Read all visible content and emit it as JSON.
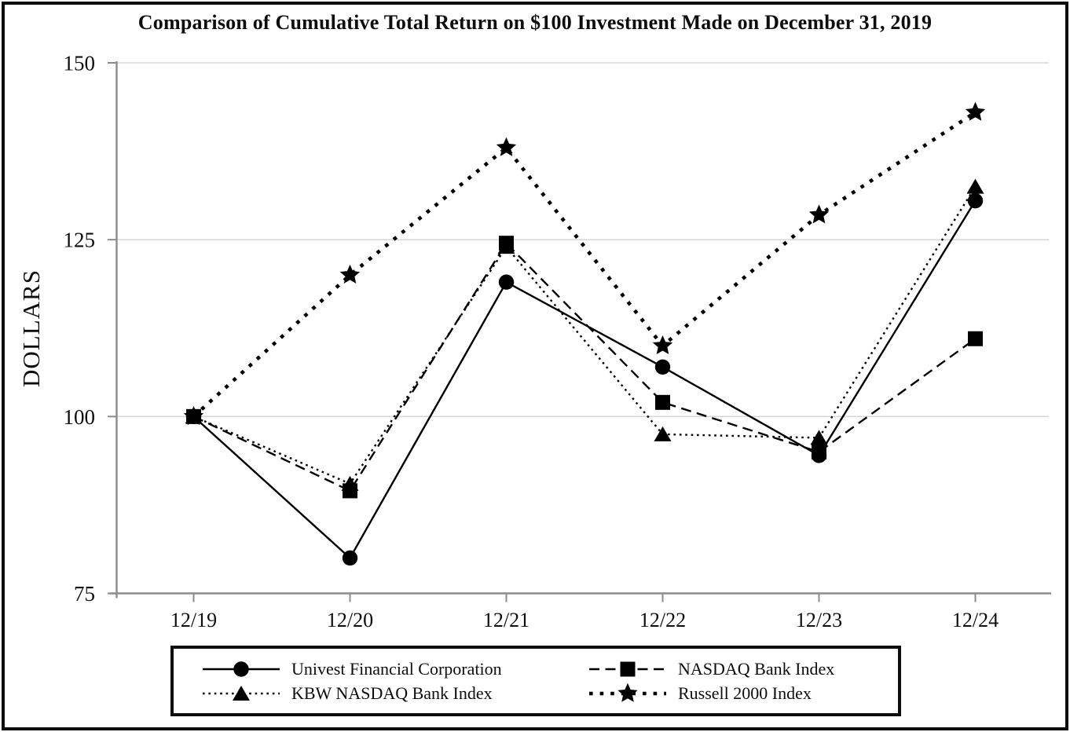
{
  "chart_data": {
    "type": "line",
    "title": "Comparison of Cumulative Total Return on $100 Investment Made on December 31, 2019",
    "ylabel": "DOLLARS",
    "xlabel": "",
    "x": [
      "12/19",
      "12/20",
      "12/21",
      "12/22",
      "12/23",
      "12/24"
    ],
    "ylim": [
      75,
      150
    ],
    "yticks": [
      75,
      100,
      125,
      150
    ],
    "grid": true,
    "legend_position": "bottom",
    "series": [
      {
        "name": "Univest Financial Corporation",
        "marker": "circle",
        "line_style": "solid",
        "values": [
          100,
          80,
          119,
          107,
          94.5,
          130.5
        ]
      },
      {
        "name": "NASDAQ Bank Index",
        "marker": "square",
        "line_style": "dashed",
        "values": [
          100,
          89.5,
          124.5,
          102,
          95,
          111
        ]
      },
      {
        "name": "KBW NASDAQ Bank Index",
        "marker": "triangle",
        "line_style": "dotted",
        "values": [
          100,
          90.5,
          124,
          97.5,
          97,
          132.5
        ]
      },
      {
        "name": "Russell 2000 Index",
        "marker": "star",
        "line_style": "bold-dotted",
        "values": [
          100,
          120,
          138,
          110,
          128.5,
          143
        ]
      }
    ]
  },
  "colors": {
    "series": "#000000",
    "grid": "#d9d9d9",
    "axis": "#8c8c8c",
    "text": "#0d0d0d",
    "border": "#0d0d0d",
    "background": "#ffffff"
  }
}
